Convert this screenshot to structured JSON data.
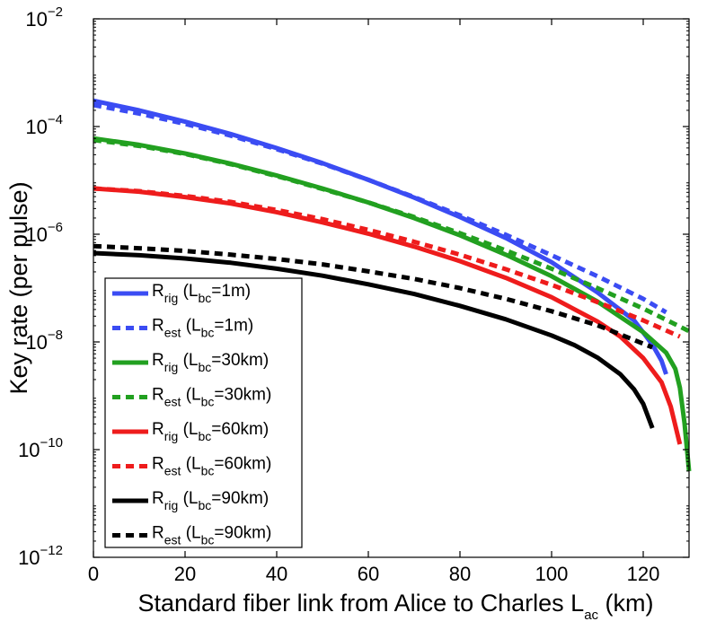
{
  "chart_data": {
    "type": "line",
    "title": "",
    "xlabel": {
      "main": "Standard fiber link from Alice to Charles L",
      "sub": "ac",
      "unit": " (km)"
    },
    "ylabel": "Key rate (per pulse)",
    "xlim": [
      0,
      130
    ],
    "ylim_log10": [
      -12,
      -2
    ],
    "yscale": "log",
    "x_ticks": [
      0,
      20,
      40,
      60,
      80,
      100,
      120
    ],
    "y_ticks": [
      {
        "exp": -12,
        "base": "10",
        "sup": "−12"
      },
      {
        "exp": -10,
        "base": "10",
        "sup": "−10"
      },
      {
        "exp": -8,
        "base": "10",
        "sup": "−8"
      },
      {
        "exp": -6,
        "base": "10",
        "sup": "−6"
      },
      {
        "exp": -4,
        "base": "10",
        "sup": "−4"
      },
      {
        "exp": -2,
        "base": "10",
        "sup": "−2"
      }
    ],
    "legend_position": "lower-left",
    "series": [
      {
        "id": "rig-1m",
        "name": "R",
        "sub": "rig",
        "paren_open": "(L",
        "paren_sub": "bc",
        "paren_close": "=1m)",
        "color": "#3b4cf3",
        "dash": "solid",
        "x": [
          0,
          10,
          20,
          30,
          40,
          50,
          60,
          70,
          80,
          90,
          100,
          110,
          118,
          122,
          124,
          125
        ],
        "log10y": [
          -3.52,
          -3.7,
          -3.91,
          -4.14,
          -4.4,
          -4.68,
          -4.99,
          -5.32,
          -5.68,
          -6.07,
          -6.52,
          -7.08,
          -7.6,
          -8.05,
          -8.35,
          -8.6
        ]
      },
      {
        "id": "est-1m",
        "name": "R",
        "sub": "est",
        "paren_open": "(L",
        "paren_sub": "bc",
        "paren_close": "=1m)",
        "color": "#3b4cf3",
        "dash": "dashed",
        "x": [
          0,
          10,
          20,
          30,
          40,
          50,
          60,
          70,
          80,
          90,
          100,
          110,
          120,
          125
        ],
        "log10y": [
          -3.6,
          -3.76,
          -3.95,
          -4.17,
          -4.42,
          -4.69,
          -4.99,
          -5.31,
          -5.65,
          -6.01,
          -6.39,
          -6.78,
          -7.2,
          -7.45
        ]
      },
      {
        "id": "rig-30km",
        "name": "R",
        "sub": "rig",
        "paren_open": "(L",
        "paren_sub": "bc",
        "paren_close": "=30km)",
        "color": "#22a020",
        "dash": "solid",
        "x": [
          0,
          10,
          20,
          30,
          40,
          50,
          60,
          70,
          80,
          90,
          100,
          110,
          120,
          125,
          127,
          128,
          129,
          130
        ],
        "log10y": [
          -4.22,
          -4.34,
          -4.5,
          -4.69,
          -4.91,
          -5.15,
          -5.41,
          -5.7,
          -6.02,
          -6.38,
          -6.78,
          -7.25,
          -7.82,
          -8.2,
          -8.5,
          -8.85,
          -9.5,
          -10.4
        ]
      },
      {
        "id": "est-30km",
        "name": "R",
        "sub": "est",
        "paren_open": "(L",
        "paren_sub": "bc",
        "paren_close": "=30km)",
        "color": "#22a020",
        "dash": "dashed",
        "x": [
          0,
          10,
          20,
          30,
          40,
          50,
          60,
          70,
          80,
          90,
          100,
          110,
          120,
          130
        ],
        "log10y": [
          -4.25,
          -4.36,
          -4.51,
          -4.7,
          -4.92,
          -5.16,
          -5.41,
          -5.68,
          -5.98,
          -6.3,
          -6.64,
          -7.0,
          -7.38,
          -7.8
        ]
      },
      {
        "id": "rig-60km",
        "name": "R",
        "sub": "rig",
        "paren_open": "(L",
        "paren_sub": "bc",
        "paren_close": "=60km)",
        "color": "#ee1c1c",
        "dash": "solid",
        "x": [
          0,
          10,
          20,
          30,
          40,
          50,
          60,
          70,
          80,
          90,
          100,
          110,
          115,
          120,
          124,
          126,
          128
        ],
        "log10y": [
          -5.15,
          -5.21,
          -5.31,
          -5.43,
          -5.59,
          -5.78,
          -5.99,
          -6.23,
          -6.5,
          -6.81,
          -7.17,
          -7.62,
          -7.9,
          -8.3,
          -8.75,
          -9.2,
          -9.9
        ]
      },
      {
        "id": "est-60km",
        "name": "R",
        "sub": "est",
        "paren_open": "(L",
        "paren_sub": "bc",
        "paren_close": "=60km)",
        "color": "#ee1c1c",
        "dash": "dashed",
        "x": [
          0,
          10,
          20,
          30,
          40,
          50,
          60,
          70,
          80,
          90,
          100,
          110,
          120,
          128
        ],
        "log10y": [
          -5.15,
          -5.2,
          -5.29,
          -5.4,
          -5.55,
          -5.72,
          -5.92,
          -6.14,
          -6.38,
          -6.65,
          -6.94,
          -7.26,
          -7.6,
          -7.9
        ]
      },
      {
        "id": "rig-90km",
        "name": "R",
        "sub": "rig",
        "paren_open": "(L",
        "paren_sub": "bc",
        "paren_close": "=90km)",
        "color": "#000000",
        "dash": "solid",
        "x": [
          0,
          10,
          20,
          30,
          40,
          50,
          60,
          70,
          80,
          90,
          100,
          105,
          110,
          115,
          118,
          120,
          122
        ],
        "log10y": [
          -6.35,
          -6.39,
          -6.45,
          -6.53,
          -6.64,
          -6.77,
          -6.93,
          -7.11,
          -7.33,
          -7.58,
          -7.88,
          -8.06,
          -8.29,
          -8.6,
          -8.88,
          -9.15,
          -9.6
        ]
      },
      {
        "id": "est-90km",
        "name": "R",
        "sub": "est",
        "paren_open": "(L",
        "paren_sub": "bc",
        "paren_close": "=90km)",
        "color": "#000000",
        "dash": "dashed",
        "x": [
          0,
          10,
          20,
          30,
          40,
          50,
          60,
          70,
          80,
          90,
          100,
          110,
          122
        ],
        "log10y": [
          -6.22,
          -6.26,
          -6.31,
          -6.38,
          -6.46,
          -6.56,
          -6.69,
          -6.83,
          -7.0,
          -7.2,
          -7.43,
          -7.69,
          -8.1
        ]
      }
    ]
  }
}
